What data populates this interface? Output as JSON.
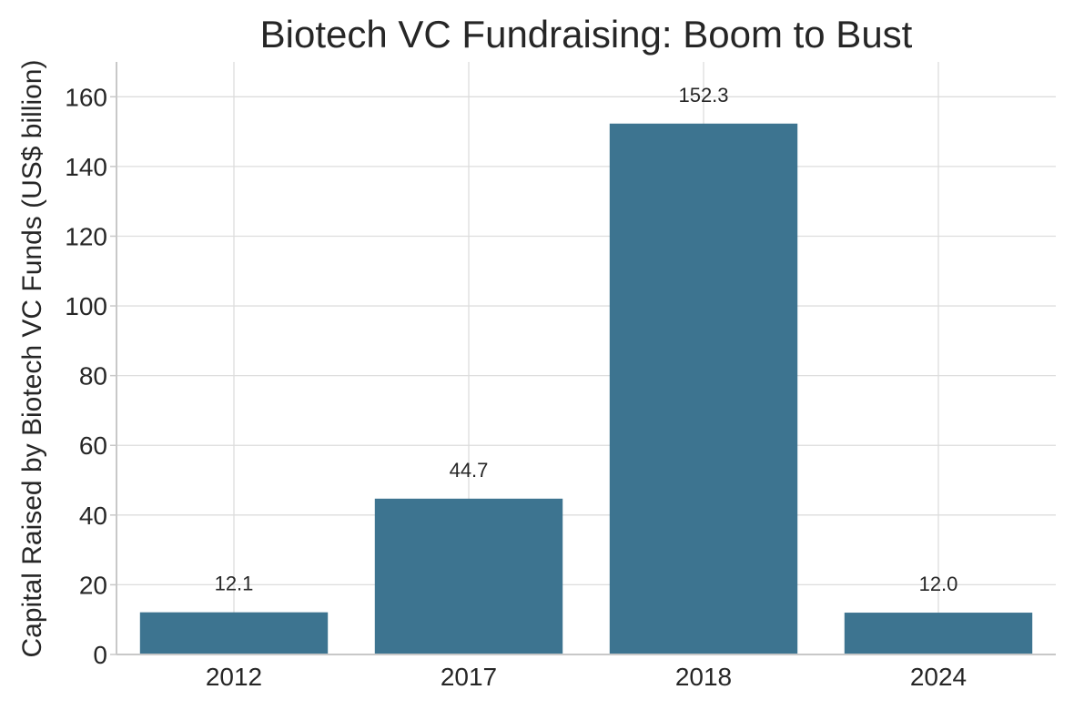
{
  "chart_data": {
    "type": "bar",
    "title": "Biotech VC Fundraising: Boom to Bust",
    "xlabel": "",
    "ylabel": "Capital Raised by Biotech VC Funds (US$ billion)",
    "categories": [
      "2012",
      "2017",
      "2018",
      "2024"
    ],
    "values": [
      12.1,
      44.7,
      152.3,
      12.0
    ],
    "value_labels": [
      "12.1",
      "44.7",
      "152.3",
      "12.0"
    ],
    "ylim": [
      0,
      170
    ],
    "yticks": [
      0,
      20,
      40,
      60,
      80,
      100,
      120,
      140,
      160
    ],
    "grid": true,
    "bar_color": "#3d7490"
  }
}
